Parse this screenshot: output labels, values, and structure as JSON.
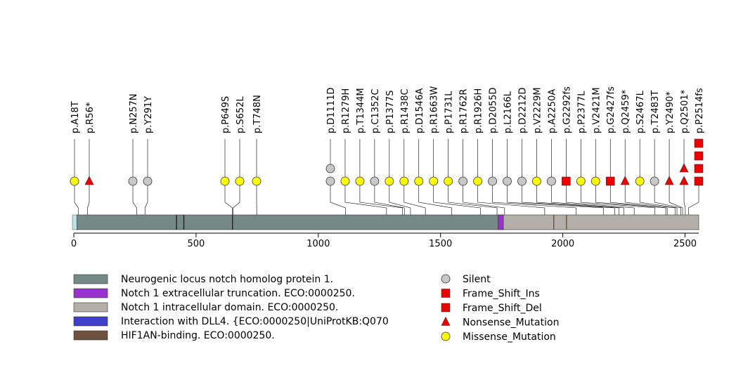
{
  "chart_data": {
    "type": "lollipop",
    "x_axis": {
      "min": 0,
      "max": 2556,
      "ticks": [
        0,
        500,
        1000,
        1500,
        2000,
        2500
      ]
    },
    "protein_length": 2556,
    "domains": [
      {
        "name": "Neurogenic locus notch homolog protein 1.",
        "start": 1,
        "end": 2556,
        "color": "#758985"
      },
      {
        "name": "Notch 1 extracellular truncation. ECO:0000250.",
        "start": 1735,
        "end": 1757,
        "color": "#9932CC"
      },
      {
        "name": "Notch 1 intracellular domain. ECO:0000250.",
        "start": 1755,
        "end": 2556,
        "color": "#B4AFA8"
      },
      {
        "name": "Interaction with DLL4. {ECO:0000250|UniProtKB:Q070",
        "start": 0,
        "end": 0,
        "color": "#3F3FCC"
      },
      {
        "name": "HIF1AN-binding. ECO:0000250.",
        "start": 0,
        "end": 0,
        "color": "#6E5040"
      }
    ],
    "mutation_types": [
      {
        "name": "Silent",
        "shape": "circle",
        "color": "#C8C8C8"
      },
      {
        "name": "Frame_Shift_Ins",
        "shape": "square",
        "color": "#EE0000"
      },
      {
        "name": "Frame_Shift_Del",
        "shape": "square",
        "color": "#EE0000"
      },
      {
        "name": "Nonsense_Mutation",
        "shape": "triangle",
        "color": "#EE0000"
      },
      {
        "name": "Missense_Mutation",
        "shape": "circle",
        "color": "#FFFF00"
      }
    ],
    "mutations": [
      {
        "label": "p.A18T",
        "position": 18,
        "markers": [
          "Missense_Mutation"
        ]
      },
      {
        "label": "p.R56*",
        "position": 56,
        "markers": [
          "Nonsense_Mutation"
        ]
      },
      {
        "label": "p.N257N",
        "position": 257,
        "markers": [
          "Silent"
        ]
      },
      {
        "label": "p.Y291Y",
        "position": 291,
        "markers": [
          "Silent"
        ]
      },
      {
        "label": "p.P649S",
        "position": 649,
        "markers": [
          "Missense_Mutation"
        ]
      },
      {
        "label": "p.S652L",
        "position": 652,
        "markers": [
          "Missense_Mutation"
        ]
      },
      {
        "label": "p.T748N",
        "position": 748,
        "markers": [
          "Missense_Mutation"
        ]
      },
      {
        "label": "p.D1111D",
        "position": 1111,
        "markers": [
          "Silent",
          "Silent"
        ]
      },
      {
        "label": "p.R1279H",
        "position": 1279,
        "markers": [
          "Missense_Mutation"
        ]
      },
      {
        "label": "p.T1344M",
        "position": 1344,
        "markers": [
          "Missense_Mutation"
        ]
      },
      {
        "label": "p.C1352C",
        "position": 1352,
        "markers": [
          "Silent"
        ]
      },
      {
        "label": "p.P1377S",
        "position": 1377,
        "markers": [
          "Missense_Mutation"
        ]
      },
      {
        "label": "p.R1438C",
        "position": 1438,
        "markers": [
          "Missense_Mutation"
        ]
      },
      {
        "label": "p.D1546A",
        "position": 1546,
        "markers": [
          "Missense_Mutation"
        ]
      },
      {
        "label": "p.R1663W",
        "position": 1663,
        "markers": [
          "Missense_Mutation"
        ]
      },
      {
        "label": "p.P1731L",
        "position": 1731,
        "markers": [
          "Missense_Mutation"
        ]
      },
      {
        "label": "p.R1762R",
        "position": 1762,
        "markers": [
          "Silent"
        ]
      },
      {
        "label": "p.R1926H",
        "position": 1926,
        "markers": [
          "Missense_Mutation"
        ]
      },
      {
        "label": "p.D2055D",
        "position": 2055,
        "markers": [
          "Silent"
        ]
      },
      {
        "label": "p.L2166L",
        "position": 2166,
        "markers": [
          "Silent"
        ]
      },
      {
        "label": "p.D2212D",
        "position": 2212,
        "markers": [
          "Silent"
        ]
      },
      {
        "label": "p.V2229M",
        "position": 2229,
        "markers": [
          "Missense_Mutation"
        ]
      },
      {
        "label": "p.A2250A",
        "position": 2250,
        "markers": [
          "Silent"
        ]
      },
      {
        "label": "p.G2292fs",
        "position": 2292,
        "markers": [
          "Frame_Shift_Del"
        ]
      },
      {
        "label": "p.P2377L",
        "position": 2377,
        "markers": [
          "Missense_Mutation"
        ]
      },
      {
        "label": "p.V2421M",
        "position": 2421,
        "markers": [
          "Missense_Mutation"
        ]
      },
      {
        "label": "p.G2427fs",
        "position": 2427,
        "markers": [
          "Frame_Shift_Del"
        ]
      },
      {
        "label": "p.Q2459*",
        "position": 2459,
        "markers": [
          "Nonsense_Mutation"
        ]
      },
      {
        "label": "p.S2467L",
        "position": 2467,
        "markers": [
          "Missense_Mutation"
        ]
      },
      {
        "label": "p.T2483T",
        "position": 2483,
        "markers": [
          "Silent"
        ]
      },
      {
        "label": "p.Y2490*",
        "position": 2490,
        "markers": [
          "Nonsense_Mutation"
        ]
      },
      {
        "label": "p.Q2501*",
        "position": 2501,
        "markers": [
          "Nonsense_Mutation",
          "Nonsense_Mutation"
        ]
      },
      {
        "label": "p.P2514fs",
        "position": 2514,
        "markers": [
          "Frame_Shift_Del",
          "Frame_Shift_Del",
          "Frame_Shift_Del",
          "Frame_Shift_Ins"
        ]
      }
    ],
    "legend_placement": "bottom"
  }
}
